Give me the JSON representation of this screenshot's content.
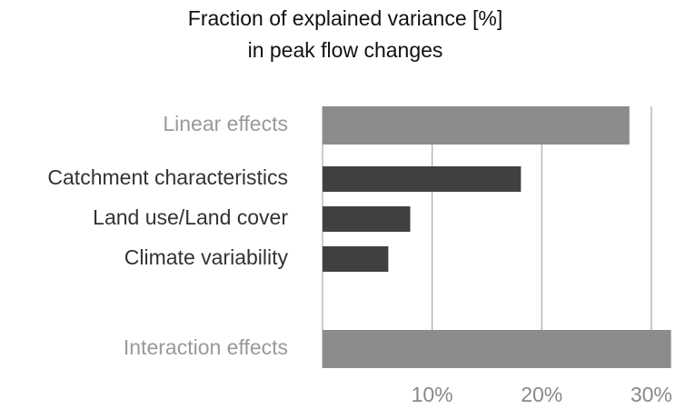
{
  "chart_data": {
    "type": "bar",
    "orientation": "horizontal",
    "title": [
      "Fraction of explained variance [%]",
      "in peak flow changes"
    ],
    "categories": [
      "Linear effects",
      "Catchment characteristics",
      "Land use/Land cover",
      "Climate variability",
      "Interaction effects"
    ],
    "values": [
      28,
      18.1,
      8,
      6,
      31.8
    ],
    "colors": [
      "#8c8c8c",
      "#404040",
      "#404040",
      "#404040",
      "#8c8c8c"
    ],
    "label_colors": [
      "#999999",
      "#333333",
      "#333333",
      "#333333",
      "#999999"
    ],
    "xlim": [
      0,
      32
    ],
    "xticks": [
      {
        "value": 10,
        "label": "10%"
      },
      {
        "value": 20,
        "label": "20%"
      },
      {
        "value": 30,
        "label": "30%"
      }
    ],
    "grid": true
  }
}
